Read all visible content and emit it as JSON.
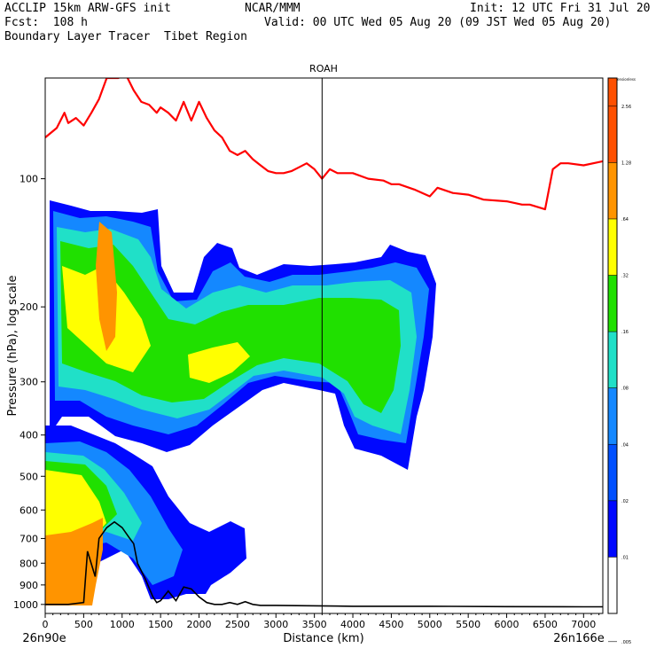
{
  "header": {
    "line1_left": "ACCLIP 15km ARW-GFS init",
    "line1_center": "NCAR/MMM",
    "line1_right": "Init: 12 UTC Fri 31 Jul 20",
    "line2_left": "Fcst:  108 h",
    "line2_right": "Valid: 00 UTC Wed 05 Aug 20 (09 JST Wed 05 Aug 20)",
    "line3_left": "Boundary Layer Tracer  Tibet Region"
  },
  "chart_data": {
    "type": "heatmap",
    "title": "ROAH",
    "xlabel": "Distance (km)",
    "ylabel": "Pressure (hPa), log scale",
    "xlim": [
      0,
      7250
    ],
    "ylim": [
      1050,
      58
    ],
    "log_y": true,
    "x_ticks": [
      "0",
      "500",
      "1000",
      "1500",
      "2000",
      "2500",
      "3000",
      "3500",
      "4000",
      "4500",
      "5000",
      "5500",
      "6000",
      "6500",
      "7000"
    ],
    "y_ticks": [
      "100",
      "200",
      "300",
      "400",
      "500",
      "600",
      "700",
      "800",
      "900",
      "1000"
    ],
    "x_start_label": "26n90e",
    "x_end_label": "26n166e",
    "marker_x_km": 3600,
    "colorbar": {
      "title": "Dimensionless",
      "levels": [
        ".005",
        ".01",
        ".02",
        ".04",
        ".08",
        ".16",
        ".32",
        ".64",
        "1.28",
        "2.56"
      ],
      "colors": [
        "#ffffff",
        "#0008ff",
        "#0050ff",
        "#1488ff",
        "#20e0c8",
        "#20e000",
        "#ffff00",
        "#ff9400",
        "#ff5000"
      ]
    },
    "tropopause_line": {
      "color": "#ff0000",
      "x": [
        0,
        150,
        250,
        300,
        400,
        500,
        600,
        700,
        800,
        950,
        1050,
        1150,
        1250,
        1350,
        1450,
        1500,
        1600,
        1700,
        1800,
        1900,
        2000,
        2100,
        2200,
        2300,
        2400,
        2500,
        2600,
        2700,
        2800,
        2900,
        3000,
        3100,
        3200,
        3300,
        3400,
        3500,
        3600,
        3700,
        3800,
        4000,
        4200,
        4400,
        4500,
        4600,
        4800,
        5000,
        5100,
        5300,
        5500,
        5700,
        6000,
        6200,
        6300,
        6500,
        6600,
        6700,
        6800,
        7000,
        7250
      ],
      "y": [
        80,
        76,
        70,
        74,
        72,
        75,
        70,
        65,
        58,
        58,
        57,
        62,
        66,
        67,
        70,
        68,
        70,
        73,
        66,
        73,
        66,
        72,
        77,
        80,
        86,
        88,
        86,
        90,
        93,
        96,
        97,
        97,
        96,
        94,
        92,
        95,
        100,
        95,
        97,
        97,
        100,
        101,
        103,
        103,
        106,
        110,
        105,
        108,
        109,
        112,
        113,
        115,
        115,
        118,
        95,
        92,
        92,
        93,
        91
      ]
    },
    "terrain_line": {
      "color": "#000000",
      "x": [
        0,
        300,
        500,
        550,
        650,
        700,
        800,
        900,
        1000,
        1100,
        1150,
        1200,
        1300,
        1400,
        1450,
        1500,
        1600,
        1700,
        1800,
        1900,
        2000,
        2100,
        2200,
        2300,
        2400,
        2500,
        2600,
        2700,
        2800,
        3000,
        4000,
        5000,
        6000,
        7000,
        7250
      ],
      "y": [
        1000,
        1000,
        990,
        750,
        860,
        700,
        660,
        640,
        660,
        700,
        720,
        800,
        870,
        960,
        990,
        980,
        930,
        980,
        910,
        920,
        960,
        990,
        1000,
        1000,
        990,
        1000,
        985,
        1000,
        1005,
        1005,
        1010,
        1010,
        1012,
        1013,
        1013
      ]
    }
  }
}
